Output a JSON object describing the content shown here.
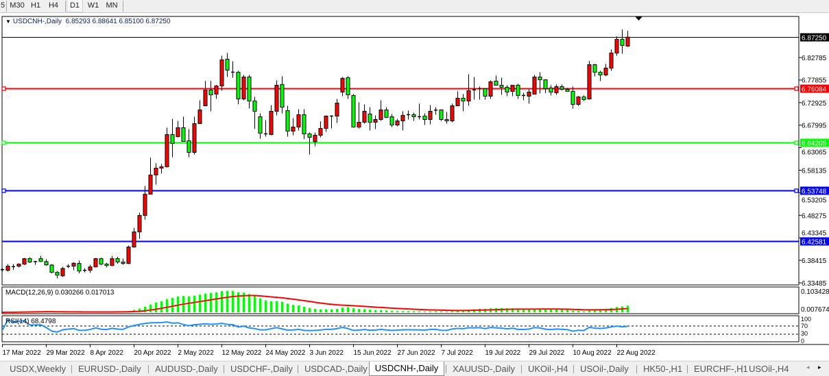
{
  "toolbar": {
    "timeframes": [
      "5",
      "M30",
      "H1",
      "H4",
      "D1",
      "W1",
      "MN"
    ],
    "active": "D1"
  },
  "header": {
    "symbol": "USDCNH-,Daily",
    "ohlc": "6.85293 6.88641 6.85100 6.87250"
  },
  "indicators": {
    "macd_label": "MACD(12,26,9) 0.030266 0.017013",
    "rsi_label": "RSI(14) 68.4798"
  },
  "price_axis": {
    "ticks": [
      "6.82785",
      "6.77855",
      "6.72925",
      "6.67995",
      "6.63065",
      "6.58135",
      "6.53205",
      "6.48275",
      "6.43345",
      "6.38415",
      "6.33485"
    ],
    "current": "6.87250"
  },
  "macd_axis": {
    "top": "0.103428",
    "bottom": "0.007674"
  },
  "rsi_axis": {
    "levels": [
      "100",
      "70",
      "30",
      "0"
    ]
  },
  "levels": [
    {
      "price": "6.87250",
      "color": "#000000",
      "kind": "current"
    },
    {
      "price": "6.76084",
      "color": "#ff0000",
      "kind": "line"
    },
    {
      "price": "6.64205",
      "color": "#00ff00",
      "kind": "line"
    },
    {
      "price": "6.53748",
      "color": "#0000ff",
      "kind": "line"
    },
    {
      "price": "6.42581",
      "color": "#0000ff",
      "kind": "line"
    }
  ],
  "colors": {
    "bull": "#ff0000",
    "bear": "#00ff00",
    "macd_hist": "#00ff00",
    "macd_signal": "#ff0000",
    "rsi": "#1e90ff"
  },
  "chart_data": {
    "type": "candlestick",
    "ylim": [
      6.33485,
      6.8941
    ],
    "date_labels": [
      "17 Mar 2022",
      "29 Mar 2022",
      "8 Apr 2022",
      "20 Apr 2022",
      "2 May 2022",
      "12 May 2022",
      "24 May 2022",
      "3 Jun 2022",
      "15 Jun 2022",
      "27 Jun 2022",
      "7 Jul 2022",
      "19 Jul 2022",
      "29 Jul 2022",
      "10 Aug 2022",
      "22 Aug 2022"
    ],
    "candles": [
      [
        6.3638,
        6.3668,
        6.3598,
        6.3638
      ],
      [
        6.3623,
        6.3758,
        6.3598,
        6.3713
      ],
      [
        6.3703,
        6.3758,
        6.3633,
        6.3703
      ],
      [
        6.3713,
        6.3773,
        6.3688,
        6.3758
      ],
      [
        6.3758,
        6.3893,
        6.3738,
        6.3878
      ],
      [
        6.3878,
        6.3908,
        6.3783,
        6.3803
      ],
      [
        6.3813,
        6.3828,
        6.3743,
        6.3813
      ],
      [
        6.3878,
        6.3938,
        6.3803,
        6.3818
      ],
      [
        6.3813,
        6.3863,
        6.3723,
        6.3743
      ],
      [
        6.3738,
        6.3758,
        6.3558,
        6.3578
      ],
      [
        6.3578,
        6.3608,
        6.3448,
        6.3518
      ],
      [
        6.3503,
        6.3698,
        6.3478,
        6.3663
      ],
      [
        6.3713,
        6.3758,
        6.3668,
        6.3713
      ],
      [
        6.3713,
        6.3798,
        6.3628,
        6.3778
      ],
      [
        6.3773,
        6.3838,
        6.3558,
        6.3608
      ],
      [
        6.3623,
        6.3668,
        6.3578,
        6.3623
      ],
      [
        6.3623,
        6.3743,
        6.3568,
        6.3698
      ],
      [
        6.3698,
        6.3893,
        6.3683,
        6.3878
      ],
      [
        6.3878,
        6.3898,
        6.3733,
        6.3758
      ],
      [
        6.3758,
        6.3788,
        6.3688,
        6.3728
      ],
      [
        6.3728,
        6.3938,
        6.3713,
        6.3878
      ],
      [
        6.3878,
        6.3918,
        6.3768,
        6.3803
      ],
      [
        6.3803,
        6.3878,
        6.3743,
        6.3773
      ],
      [
        6.3773,
        6.4163,
        6.3758,
        6.4133
      ],
      [
        6.4133,
        6.4553,
        6.4118,
        6.4463
      ],
      [
        6.4463,
        6.4883,
        6.4313,
        6.4823
      ],
      [
        6.4823,
        6.5468,
        6.4733,
        6.5288
      ],
      [
        6.5288,
        6.6088,
        6.5288,
        6.5708
      ],
      [
        6.5708,
        6.5968,
        6.5498,
        6.5858
      ],
      [
        6.5858,
        6.5948,
        6.5743,
        6.5888
      ],
      [
        6.5888,
        6.6743,
        6.5873,
        6.6593
      ],
      [
        6.6593,
        6.6938,
        6.6098,
        6.6398
      ],
      [
        6.6548,
        6.6893,
        6.6533,
        6.6743
      ],
      [
        6.6743,
        6.6983,
        6.6443,
        6.6443
      ],
      [
        6.6458,
        6.6713,
        6.6098,
        6.6203
      ],
      [
        6.6203,
        6.6983,
        6.6158,
        6.6833
      ],
      [
        6.6833,
        6.7343,
        6.6833,
        6.7133
      ],
      [
        6.7223,
        6.7768,
        6.7223,
        6.7568
      ],
      [
        6.7568,
        6.7768,
        6.7103,
        6.7463
      ],
      [
        6.7478,
        6.7678,
        6.7373,
        6.7658
      ],
      [
        6.7658,
        6.8318,
        6.7553,
        6.8228
      ],
      [
        6.8243,
        6.8378,
        6.7853,
        6.8003
      ],
      [
        6.7958,
        6.8198,
        6.7838,
        6.7958
      ],
      [
        6.7958,
        6.7988,
        6.7253,
        6.7373
      ],
      [
        6.7373,
        6.7898,
        6.7343,
        6.7853
      ],
      [
        6.7853,
        6.7898,
        6.7163,
        6.7328
      ],
      [
        6.7328,
        6.7418,
        6.6718,
        6.7103
      ],
      [
        6.6983,
        6.7058,
        6.6503,
        6.6623
      ],
      [
        6.6608,
        6.6908,
        6.6548,
        6.6608
      ],
      [
        6.6593,
        6.7238,
        6.6578,
        6.7103
      ],
      [
        6.7103,
        6.7778,
        6.7013,
        6.7673
      ],
      [
        6.7688,
        6.7868,
        6.7058,
        6.7193
      ],
      [
        6.7118,
        6.7223,
        6.6548,
        6.6668
      ],
      [
        6.6668,
        6.6953,
        6.6578,
        6.6758
      ],
      [
        6.6758,
        6.7148,
        6.6683,
        6.7028
      ],
      [
        6.7028,
        6.7148,
        6.6493,
        6.6608
      ],
      [
        6.6608,
        6.6638,
        6.6158,
        6.6533
      ],
      [
        6.6438,
        6.6638,
        6.6338,
        6.6578
      ],
      [
        6.6578,
        6.6883,
        6.6533,
        6.6728
      ],
      [
        6.6728,
        6.7013,
        6.6653,
        6.6998
      ],
      [
        6.6998,
        6.7013,
        6.6728,
        6.6998
      ],
      [
        6.6998,
        6.7373,
        6.6848,
        6.7283
      ],
      [
        6.7523,
        6.7853,
        6.7433,
        6.7823
      ],
      [
        6.7838,
        6.7868,
        6.7373,
        6.7463
      ],
      [
        6.7448,
        6.7478,
        6.6743,
        6.6758
      ],
      [
        6.6758,
        6.7298,
        6.6728,
        6.6863
      ],
      [
        6.6863,
        6.7253,
        6.6833,
        6.7103
      ],
      [
        6.7043,
        6.7193,
        6.6683,
        6.6863
      ],
      [
        6.6863,
        6.7013,
        6.6713,
        6.6923
      ],
      [
        6.6923,
        6.7343,
        6.6893,
        6.7133
      ],
      [
        6.7133,
        6.7193,
        6.6953,
        6.6968
      ],
      [
        6.6983,
        6.7043,
        6.6758,
        6.6803
      ],
      [
        6.6803,
        6.6938,
        6.6773,
        6.6893
      ],
      [
        6.6893,
        6.7103,
        6.6683,
        6.7013
      ],
      [
        6.7028,
        6.7118,
        6.6923,
        6.7028
      ],
      [
        6.7028,
        6.7073,
        6.6893,
        6.6983
      ],
      [
        6.6983,
        6.7268,
        6.6923,
        6.6983
      ],
      [
        6.6998,
        6.7058,
        6.6803,
        6.6923
      ],
      [
        6.6923,
        6.7238,
        6.6818,
        6.7103
      ],
      [
        6.7128,
        6.7193,
        6.7028,
        6.7128
      ],
      [
        6.7133,
        6.7143,
        6.6888,
        6.6923
      ],
      [
        6.6923,
        6.7088,
        6.6833,
        6.6893
      ],
      [
        6.6893,
        6.7268,
        6.6863,
        6.7223
      ],
      [
        6.7223,
        6.7538,
        6.7223,
        6.7388
      ],
      [
        6.7388,
        6.7478,
        6.7103,
        6.7328
      ],
      [
        6.7328,
        6.7913,
        6.7223,
        6.7553
      ],
      [
        6.7573,
        6.7853,
        6.7358,
        6.7573
      ],
      [
        6.7598,
        6.7643,
        6.7358,
        6.7598
      ],
      [
        6.7598,
        6.7598,
        6.7358,
        6.7433
      ],
      [
        6.7433,
        6.7778,
        6.7373,
        6.7748
      ],
      [
        6.7763,
        6.7883,
        6.7673,
        6.7673
      ],
      [
        6.7673,
        6.7838,
        6.7463,
        6.7628
      ],
      [
        6.7628,
        6.7673,
        6.7433,
        6.7523
      ],
      [
        6.7538,
        6.7673,
        6.7433,
        6.7673
      ],
      [
        6.7673,
        6.7703,
        6.7373,
        6.7448
      ],
      [
        6.7448,
        6.7508,
        6.7343,
        6.7448
      ],
      [
        6.7433,
        6.7583,
        6.7268,
        6.7523
      ],
      [
        6.7478,
        6.7898,
        6.7478,
        6.7853
      ],
      [
        6.7853,
        6.7958,
        6.7493,
        6.7793
      ],
      [
        6.7793,
        6.7793,
        6.7498,
        6.7598
      ],
      [
        6.7613,
        6.7673,
        6.7448,
        6.7523
      ],
      [
        6.7508,
        6.7688,
        6.7463,
        6.7643
      ],
      [
        6.7643,
        6.7688,
        6.7553,
        6.7583
      ],
      [
        6.7583,
        6.7613,
        6.7538,
        6.7538
      ],
      [
        6.7538,
        6.7643,
        6.7163,
        6.7253
      ],
      [
        6.7253,
        6.7433,
        6.7223,
        6.7418
      ],
      [
        6.7418,
        6.7448,
        6.7328,
        6.7358
      ],
      [
        6.7373,
        6.8203,
        6.7358,
        6.8123
      ],
      [
        6.8123,
        6.8138,
        6.7868,
        6.7958
      ],
      [
        6.7958,
        6.7988,
        6.7763,
        6.7898
      ],
      [
        6.7898,
        6.8138,
        6.7868,
        6.8048
      ],
      [
        6.8048,
        6.8458,
        6.7988,
        6.8378
      ],
      [
        6.8378,
        6.8738,
        6.8318,
        6.8678
      ],
      [
        6.8678,
        6.8893,
        6.8363,
        6.8543
      ],
      [
        6.8529,
        6.8864,
        6.851,
        6.8725
      ]
    ]
  },
  "tabs": [
    "USDX,Weekly",
    "EURUSD-,Daily",
    "AUDUSD-,Daily",
    "USDCHF-,Daily",
    "USDCAD-,Daily",
    "USDCNH-,Daily",
    "XAUUSD-,Daily",
    "UKOil-,H4",
    "USOil-,Daily",
    "HK50-,H1",
    "EURCHF-,H1",
    "USOil-,H4"
  ],
  "active_tab": "USDCNH-,Daily",
  "tab_scroll": {
    "left_icon": "scroll-left-icon",
    "right_icon": "scroll-right-icon"
  }
}
